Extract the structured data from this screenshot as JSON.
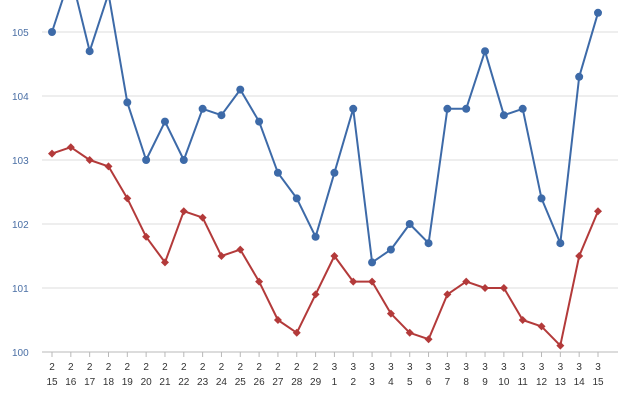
{
  "chart_data": {
    "type": "line",
    "title": "",
    "xlabel": "",
    "ylabel": "",
    "ylim": [
      100,
      105.5
    ],
    "yticks": [
      "100",
      "101",
      "102",
      "103",
      "104",
      "105"
    ],
    "grid": "horizontal",
    "categories": [
      {
        "top": "2",
        "bottom": "15"
      },
      {
        "top": "2",
        "bottom": "16"
      },
      {
        "top": "2",
        "bottom": "17"
      },
      {
        "top": "2",
        "bottom": "18"
      },
      {
        "top": "2",
        "bottom": "19"
      },
      {
        "top": "2",
        "bottom": "20"
      },
      {
        "top": "2",
        "bottom": "21"
      },
      {
        "top": "2",
        "bottom": "22"
      },
      {
        "top": "2",
        "bottom": "23"
      },
      {
        "top": "2",
        "bottom": "24"
      },
      {
        "top": "2",
        "bottom": "25"
      },
      {
        "top": "2",
        "bottom": "26"
      },
      {
        "top": "2",
        "bottom": "27"
      },
      {
        "top": "2",
        "bottom": "28"
      },
      {
        "top": "2",
        "bottom": "29"
      },
      {
        "top": "3",
        "bottom": "1"
      },
      {
        "top": "3",
        "bottom": "2"
      },
      {
        "top": "3",
        "bottom": "3"
      },
      {
        "top": "3",
        "bottom": "4"
      },
      {
        "top": "3",
        "bottom": "5"
      },
      {
        "top": "3",
        "bottom": "6"
      },
      {
        "top": "3",
        "bottom": "7"
      },
      {
        "top": "3",
        "bottom": "8"
      },
      {
        "top": "3",
        "bottom": "9"
      },
      {
        "top": "3",
        "bottom": "10"
      },
      {
        "top": "3",
        "bottom": "11"
      },
      {
        "top": "3",
        "bottom": "12"
      },
      {
        "top": "3",
        "bottom": "13"
      },
      {
        "top": "3",
        "bottom": "14"
      },
      {
        "top": "3",
        "bottom": "15"
      }
    ],
    "series": [
      {
        "color": "#3d6aa8",
        "marker": "circle",
        "values": [
          105.0,
          105.9,
          104.7,
          105.6,
          103.9,
          103.0,
          103.6,
          103.0,
          103.8,
          103.7,
          104.1,
          103.6,
          102.8,
          102.4,
          101.8,
          102.8,
          103.8,
          101.4,
          101.6,
          102.0,
          101.7,
          103.8,
          103.8,
          104.7,
          103.7,
          103.8,
          102.4,
          101.7,
          104.3,
          105.3
        ]
      },
      {
        "color": "#b33a3a",
        "marker": "diamond",
        "values": [
          103.1,
          103.2,
          103.0,
          102.9,
          102.4,
          101.8,
          101.4,
          102.2,
          102.1,
          101.5,
          101.6,
          101.1,
          100.5,
          100.3,
          100.9,
          101.5,
          101.1,
          101.1,
          100.6,
          100.3,
          100.2,
          100.9,
          101.1,
          101.0,
          101.0,
          100.5,
          100.4,
          100.1,
          101.5,
          102.2
        ]
      }
    ]
  }
}
